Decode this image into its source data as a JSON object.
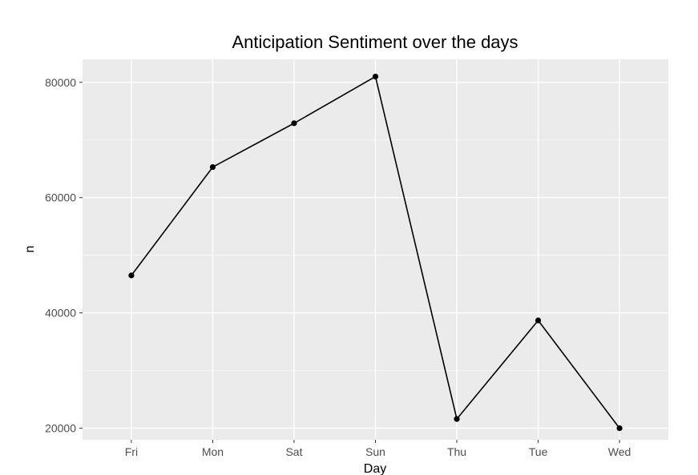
{
  "chart_data": {
    "type": "line",
    "title": "Anticipation Sentiment over the days",
    "xlabel": "Day",
    "ylabel": "n",
    "categories": [
      "Fri",
      "Mon",
      "Sat",
      "Sun",
      "Thu",
      "Tue",
      "Wed"
    ],
    "series": [
      {
        "values": [
          46500,
          65300,
          72900,
          81000,
          21600,
          38700,
          20000
        ]
      }
    ],
    "ylim": [
      18000,
      84000
    ],
    "yticks": [
      "20000",
      "40000",
      "60000",
      "80000"
    ],
    "grid": true,
    "legend": "none",
    "colors": {
      "panel": "#ebebeb",
      "grid_major": "#ffffff",
      "line": "#000000",
      "point": "#000000",
      "tick_text": "#4d4d4d"
    }
  }
}
